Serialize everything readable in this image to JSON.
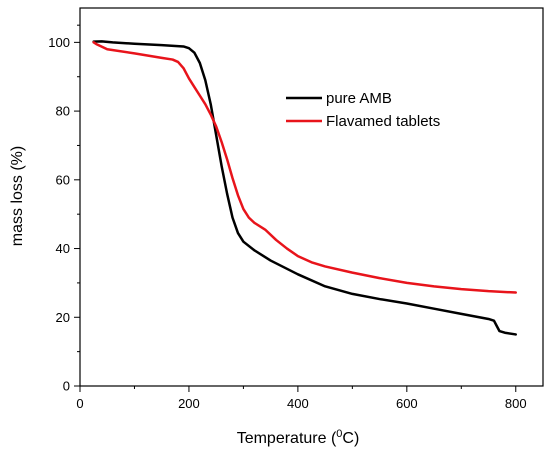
{
  "chart_data": {
    "type": "line",
    "xlabel_text": "Temperature (",
    "xlabel_sup": "0",
    "xlabel_unit": "C)",
    "ylabel": "mass loss (%)",
    "xlim": [
      0,
      850
    ],
    "ylim": [
      0,
      110
    ],
    "xticks": [
      0,
      200,
      400,
      600,
      800
    ],
    "yticks": [
      0,
      20,
      40,
      60,
      80,
      100
    ],
    "grid": false,
    "legend_position": "upper-right",
    "series": [
      {
        "name": "pure AMB",
        "color": "#000000",
        "points": [
          [
            25,
            100.2
          ],
          [
            40,
            100.3
          ],
          [
            60,
            100.0
          ],
          [
            100,
            99.6
          ],
          [
            150,
            99.2
          ],
          [
            190,
            98.8
          ],
          [
            200,
            98.3
          ],
          [
            210,
            97.0
          ],
          [
            220,
            94.0
          ],
          [
            230,
            89.0
          ],
          [
            240,
            82.0
          ],
          [
            250,
            73.0
          ],
          [
            260,
            64.0
          ],
          [
            270,
            56.0
          ],
          [
            280,
            49.0
          ],
          [
            290,
            44.5
          ],
          [
            300,
            42.0
          ],
          [
            320,
            39.5
          ],
          [
            350,
            36.5
          ],
          [
            400,
            32.5
          ],
          [
            450,
            29.0
          ],
          [
            500,
            26.8
          ],
          [
            550,
            25.3
          ],
          [
            600,
            24.0
          ],
          [
            650,
            22.5
          ],
          [
            700,
            21.0
          ],
          [
            750,
            19.5
          ],
          [
            760,
            19.0
          ],
          [
            765,
            17.5
          ],
          [
            770,
            16.0
          ],
          [
            780,
            15.5
          ],
          [
            800,
            15.0
          ]
        ]
      },
      {
        "name": "Flavamed tablets",
        "color": "#e8141b",
        "points": [
          [
            25,
            100.0
          ],
          [
            30,
            99.5
          ],
          [
            50,
            98.0
          ],
          [
            100,
            96.8
          ],
          [
            150,
            95.5
          ],
          [
            170,
            95.0
          ],
          [
            180,
            94.3
          ],
          [
            190,
            92.5
          ],
          [
            200,
            89.5
          ],
          [
            210,
            87.0
          ],
          [
            220,
            84.5
          ],
          [
            230,
            82.0
          ],
          [
            240,
            79.0
          ],
          [
            250,
            75.5
          ],
          [
            260,
            71.0
          ],
          [
            270,
            66.0
          ],
          [
            280,
            60.5
          ],
          [
            290,
            55.5
          ],
          [
            300,
            51.5
          ],
          [
            310,
            49.0
          ],
          [
            320,
            47.5
          ],
          [
            340,
            45.5
          ],
          [
            360,
            42.5
          ],
          [
            380,
            40.0
          ],
          [
            400,
            37.8
          ],
          [
            425,
            36.0
          ],
          [
            450,
            34.8
          ],
          [
            500,
            33.0
          ],
          [
            550,
            31.4
          ],
          [
            600,
            30.0
          ],
          [
            650,
            29.0
          ],
          [
            700,
            28.2
          ],
          [
            750,
            27.6
          ],
          [
            800,
            27.2
          ]
        ]
      }
    ]
  }
}
